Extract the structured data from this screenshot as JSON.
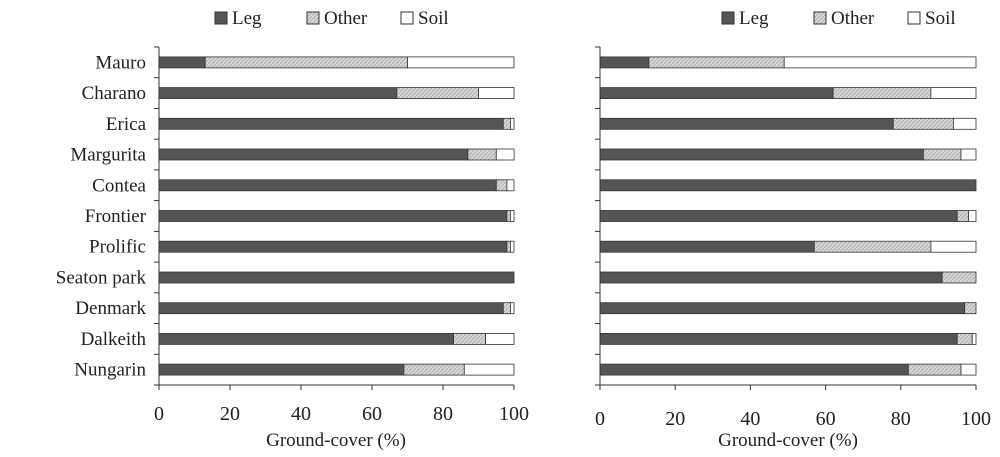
{
  "chart_data": [
    {
      "type": "bar",
      "orientation": "horizontal",
      "stacked": true,
      "categories": [
        "Mauro",
        "Charano",
        "Erica",
        "Margurita",
        "Contea",
        "Frontier",
        "Prolific",
        "Seaton park",
        "Denmark",
        "Dalkeith",
        "Nungarin"
      ],
      "series": [
        {
          "name": "Leg",
          "values": [
            13,
            67,
            97,
            87,
            95,
            98,
            98,
            100,
            97,
            83,
            69
          ]
        },
        {
          "name": "Other",
          "values": [
            57,
            23,
            2,
            8,
            3,
            1,
            1,
            0,
            2,
            9,
            17
          ]
        },
        {
          "name": "Soil",
          "values": [
            30,
            10,
            1,
            5,
            2,
            1,
            1,
            0,
            1,
            8,
            14
          ]
        }
      ],
      "xlabel": "Ground-cover (%)",
      "xlim": [
        0,
        100
      ],
      "xticks": [
        "0",
        "20",
        "40",
        "60",
        "80",
        "100"
      ],
      "legend_position": "top",
      "show_category_labels": true
    },
    {
      "type": "bar",
      "orientation": "horizontal",
      "stacked": true,
      "categories": [
        "Mauro",
        "Charano",
        "Erica",
        "Margurita",
        "Contea",
        "Frontier",
        "Prolific",
        "Seaton park",
        "Denmark",
        "Dalkeith",
        "Nungarin"
      ],
      "series": [
        {
          "name": "Leg",
          "values": [
            13,
            62,
            78,
            86,
            100,
            95,
            57,
            91,
            97,
            95,
            82
          ]
        },
        {
          "name": "Other",
          "values": [
            36,
            26,
            16,
            10,
            0,
            3,
            31,
            9,
            3,
            4,
            14
          ]
        },
        {
          "name": "Soil",
          "values": [
            51,
            12,
            6,
            4,
            0,
            2,
            12,
            0,
            0,
            1,
            4
          ]
        }
      ],
      "xlabel": "Ground-cover (%)",
      "xlim": [
        0,
        100
      ],
      "xticks": [
        "0",
        "20",
        "40",
        "60",
        "80",
        "100"
      ],
      "legend_position": "top",
      "show_category_labels": false
    }
  ],
  "colors": {
    "Leg": "#555555",
    "Other": "#cfcfcf",
    "Soil": "#ffffff"
  }
}
